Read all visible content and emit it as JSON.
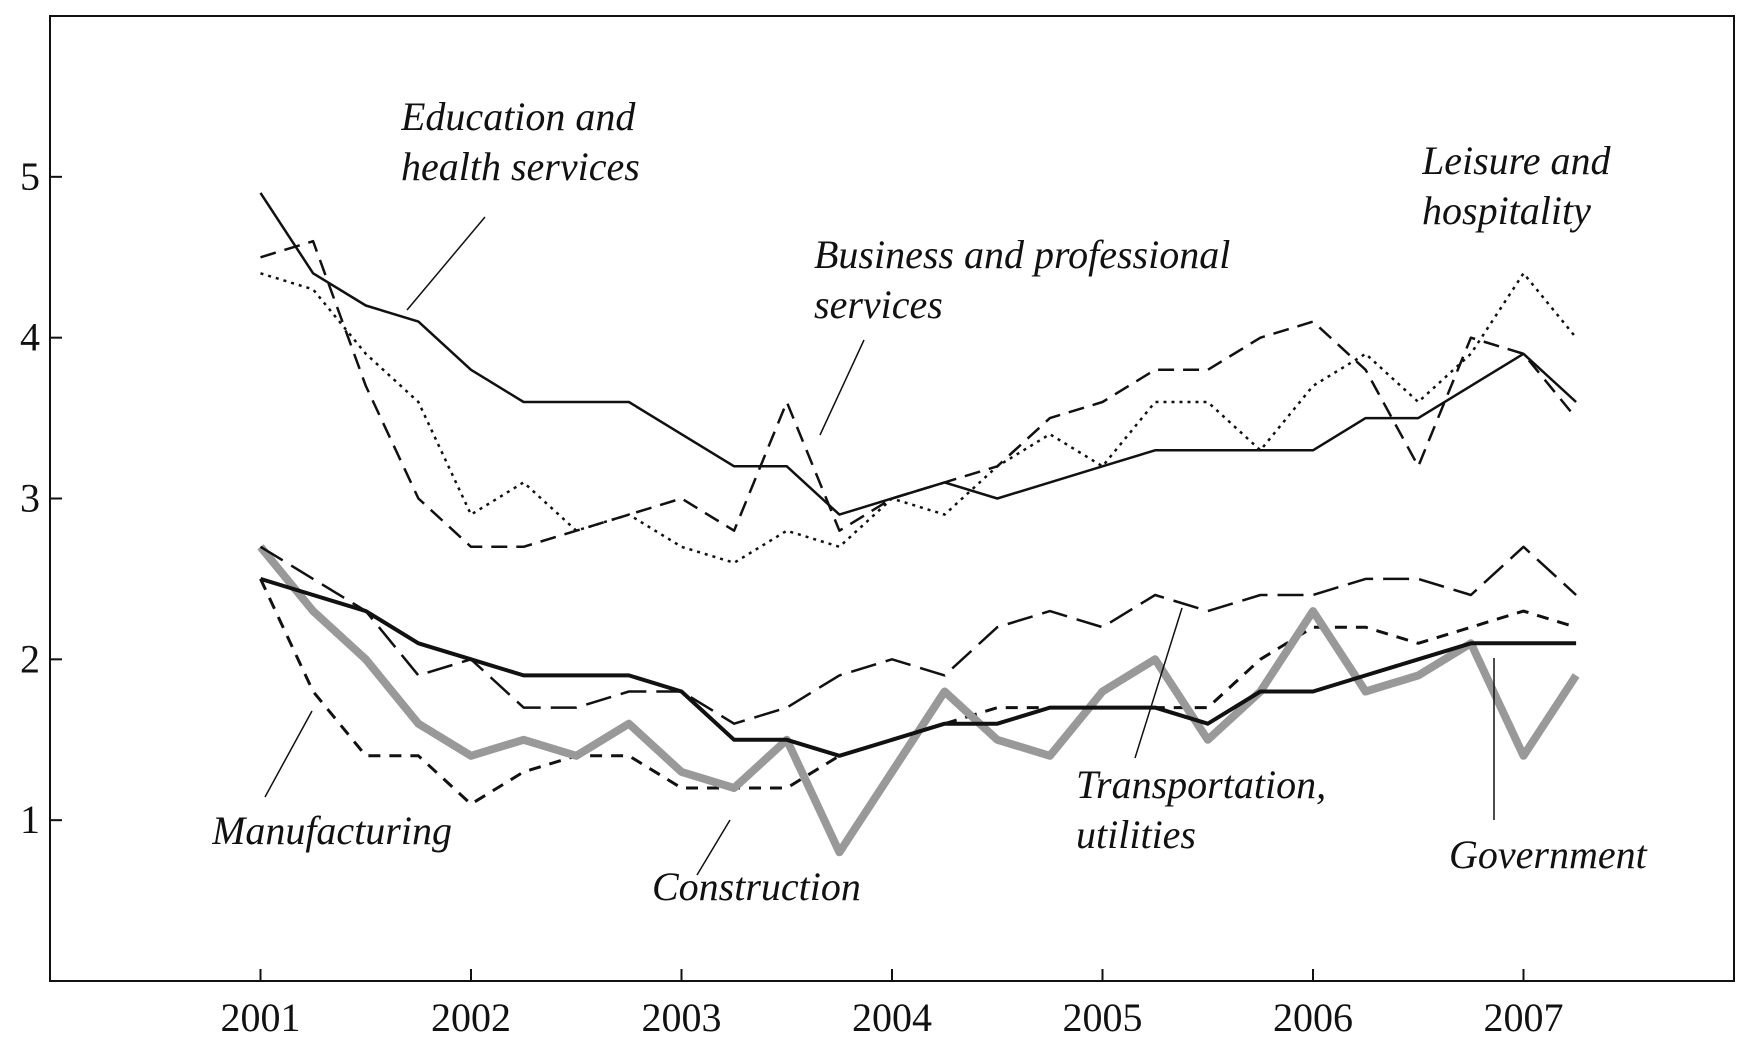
{
  "chart_data": {
    "type": "line",
    "x": [
      2001,
      2001.25,
      2001.5,
      2001.75,
      2002,
      2002.25,
      2002.5,
      2002.75,
      2003,
      2003.25,
      2003.5,
      2003.75,
      2004,
      2004.25,
      2004.5,
      2004.75,
      2005,
      2005.25,
      2005.5,
      2005.75,
      2006,
      2006.25,
      2006.5,
      2006.75,
      2007,
      2007.25
    ],
    "series": [
      {
        "name": "Education and health services",
        "color": "#111111",
        "values": [
          4.9,
          4.4,
          4.2,
          4.1,
          3.8,
          3.6,
          3.6,
          3.6,
          3.4,
          3.2,
          3.2,
          2.9,
          3.0,
          3.1,
          3.0,
          3.1,
          3.2,
          3.3,
          3.3,
          3.3,
          3.3,
          3.5,
          3.5,
          3.7,
          3.9,
          3.6
        ]
      },
      {
        "name": "Business and professional services",
        "color": "#111111",
        "values": [
          4.5,
          4.6,
          3.7,
          3.0,
          2.7,
          2.7,
          2.8,
          2.9,
          3.0,
          2.8,
          3.6,
          2.8,
          3.0,
          3.1,
          3.2,
          3.5,
          3.6,
          3.8,
          3.8,
          4.0,
          4.1,
          3.8,
          3.2,
          4.0,
          3.9,
          3.5
        ]
      },
      {
        "name": "Leisure and hospitality",
        "color": "#111111",
        "values": [
          4.4,
          4.3,
          3.9,
          3.6,
          2.9,
          3.1,
          2.8,
          2.9,
          2.7,
          2.6,
          2.8,
          2.7,
          3.0,
          2.9,
          3.2,
          3.4,
          3.2,
          3.6,
          3.6,
          3.3,
          3.7,
          3.9,
          3.6,
          3.9,
          4.4,
          4.0
        ]
      },
      {
        "name": "Manufacturing",
        "color": "#111111",
        "values": [
          2.5,
          1.8,
          1.4,
          1.4,
          1.1,
          1.3,
          1.4,
          1.4,
          1.2,
          1.2,
          1.2,
          1.4,
          1.5,
          1.6,
          1.7,
          1.7,
          1.7,
          1.7,
          1.7,
          2.0,
          2.2,
          2.2,
          2.1,
          2.2,
          2.3,
          2.2
        ]
      },
      {
        "name": "Construction",
        "color": "#999999",
        "values": [
          2.7,
          2.3,
          2.0,
          1.6,
          1.4,
          1.5,
          1.4,
          1.6,
          1.3,
          1.2,
          1.5,
          0.8,
          1.3,
          1.8,
          1.5,
          1.4,
          1.8,
          2.0,
          1.5,
          1.8,
          2.3,
          1.8,
          1.9,
          2.1,
          1.4,
          1.9
        ]
      },
      {
        "name": "Transportation, utilities",
        "color": "#111111",
        "values": [
          2.7,
          2.5,
          2.3,
          1.9,
          2.0,
          1.7,
          1.7,
          1.8,
          1.8,
          1.6,
          1.7,
          1.9,
          2.0,
          1.9,
          2.2,
          2.3,
          2.2,
          2.4,
          2.3,
          2.4,
          2.4,
          2.5,
          2.5,
          2.4,
          2.7,
          2.4
        ]
      },
      {
        "name": "Government",
        "color": "#111111",
        "values": [
          2.5,
          2.4,
          2.3,
          2.1,
          2.0,
          1.9,
          1.9,
          1.9,
          1.8,
          1.5,
          1.5,
          1.4,
          1.5,
          1.6,
          1.6,
          1.7,
          1.7,
          1.7,
          1.6,
          1.8,
          1.8,
          1.9,
          2.0,
          2.1,
          2.1,
          2.1
        ]
      }
    ],
    "xlim": [
      2000,
      2008
    ],
    "xticks": [
      2001,
      2002,
      2003,
      2004,
      2005,
      2006,
      2007
    ],
    "ylim": [
      0,
      6
    ],
    "yticks": [
      1,
      2,
      3,
      4,
      5
    ]
  }
}
